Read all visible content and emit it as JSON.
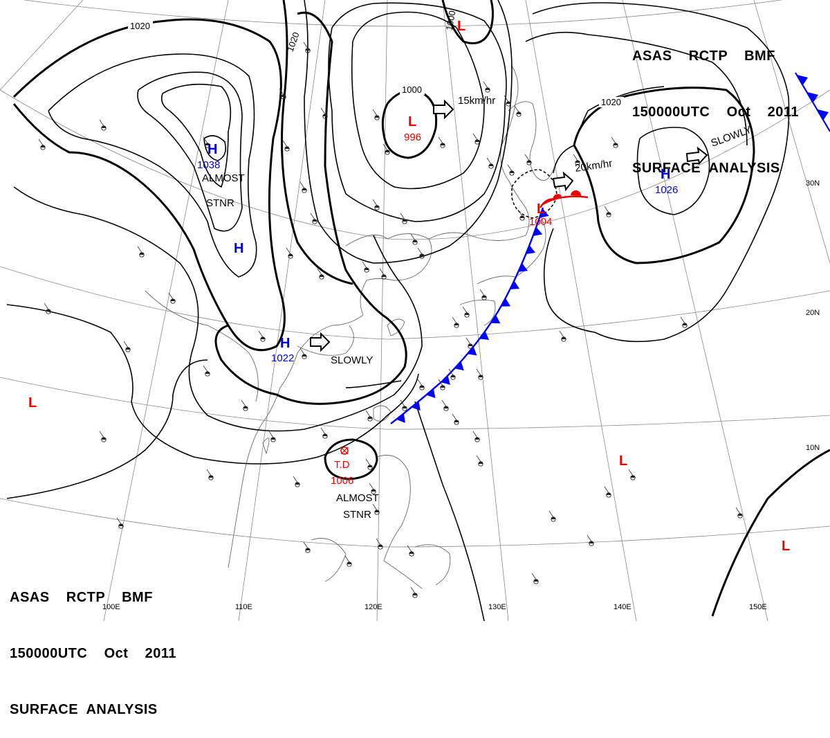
{
  "header_top": {
    "line1": "ASAS    RCTP    BMF",
    "line2": "150000UTC    Oct    2011",
    "line3": "SURFACE  ANALYSIS"
  },
  "header_bottom": {
    "line1": "ASAS    RCTP    BMF",
    "line2": "150000UTC    Oct    2011",
    "line3": "SURFACE  ANALYSIS"
  },
  "grid": {
    "lon_labels": [
      "100E",
      "110E",
      "120E",
      "130E",
      "140E",
      "150E"
    ],
    "lat_labels": [
      "30N",
      "20N",
      "10N"
    ]
  },
  "isobar_labels": [
    "1020",
    "1020",
    "1000",
    "1000",
    "1020"
  ],
  "systems": [
    {
      "id": "high-1038",
      "type": "H",
      "pressure": "1038",
      "note": "ALMOST",
      "note2": "STNR"
    },
    {
      "id": "high-unlabeled",
      "type": "H",
      "pressure": ""
    },
    {
      "id": "high-1022",
      "type": "H",
      "pressure": "1022",
      "note": "SLOWLY"
    },
    {
      "id": "low-996",
      "type": "L",
      "pressure": "996",
      "motion": "15km/hr"
    },
    {
      "id": "low-1004",
      "type": "L",
      "pressure": "1004",
      "motion": "20km/hr"
    },
    {
      "id": "high-1026",
      "type": "H",
      "pressure": "1026",
      "note": "SLOWLY"
    },
    {
      "id": "td-1006",
      "type": "T.D",
      "pressure": "1006",
      "note": "ALMOST",
      "note2": "STNR"
    },
    {
      "id": "low-top",
      "type": "L",
      "pressure": ""
    },
    {
      "id": "low-west",
      "type": "L",
      "pressure": ""
    },
    {
      "id": "low-east-1",
      "type": "L",
      "pressure": ""
    },
    {
      "id": "low-east-2",
      "type": "L",
      "pressure": ""
    }
  ],
  "colors": {
    "high": "#0000dd",
    "low": "#ee0000",
    "cold_front": "#0000ff",
    "warm_front": "#ee0000",
    "isobar": "#000000",
    "coast": "#6a6a6a",
    "grid": "#888888"
  }
}
